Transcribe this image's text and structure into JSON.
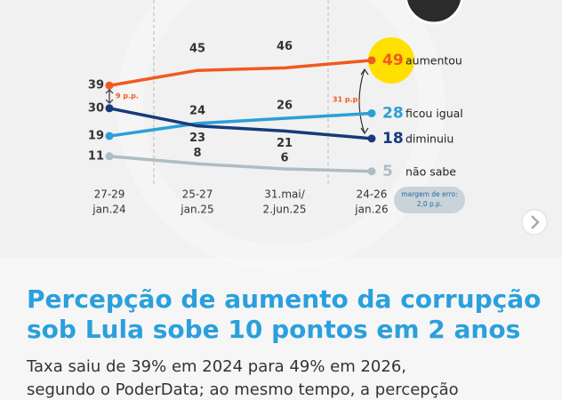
{
  "chart_data": {
    "type": "line",
    "categories": [
      [
        "27-29",
        "jan.24"
      ],
      [
        "25-27",
        "jan.25"
      ],
      [
        "31.mai/",
        "2.jun.25"
      ],
      [
        "24-26",
        "jan.26"
      ]
    ],
    "series": [
      {
        "name": "aumentou",
        "color": "#f05a1e",
        "values": [
          39,
          45,
          46,
          49
        ]
      },
      {
        "name": "ficou igual",
        "color": "#2a9fd8",
        "values": [
          19,
          24,
          26,
          28
        ]
      },
      {
        "name": "diminuiu",
        "color": "#163a7a",
        "values": [
          30,
          23,
          21,
          18
        ]
      },
      {
        "name": "não sabe",
        "color": "#b0bcc4",
        "values": [
          11,
          8,
          6,
          5
        ]
      }
    ],
    "ylim": [
      0,
      50
    ],
    "annotations": [
      "9 p.p.",
      "31 p.p.",
      [
        "margem de erro:",
        "2,0 p.p."
      ]
    ]
  },
  "headline": [
    "Percepção de aumento da corrupção",
    "sob Lula sobe 10 pontos em 2 anos"
  ],
  "body": [
    "Taxa saiu de 39% em 2024 para 49% em 2026,",
    "segundo o PoderData; ao mesmo tempo, a percepção"
  ]
}
